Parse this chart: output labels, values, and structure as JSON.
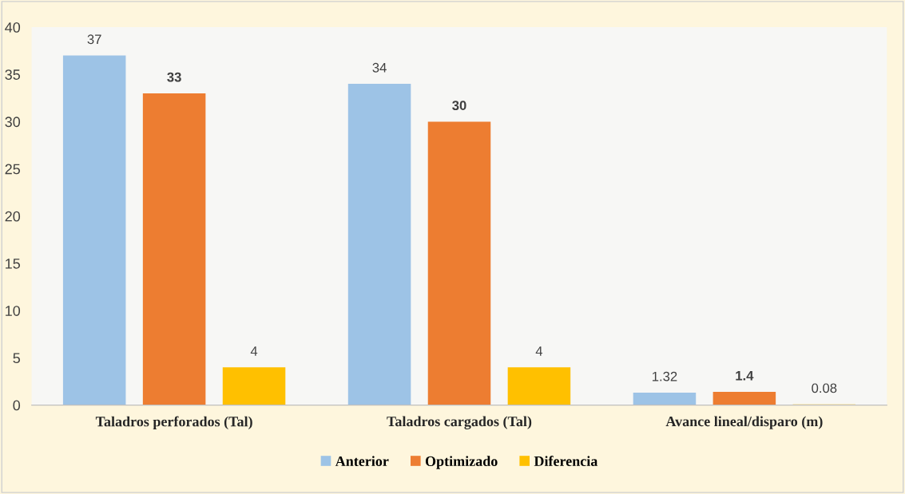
{
  "chart_data": {
    "type": "bar",
    "categories": [
      "Taladros perforados (Tal)",
      "Taladros cargados (Tal)",
      "Avance lineal/disparo (m)"
    ],
    "series": [
      {
        "name": "Anterior",
        "color": "#9dc3e6",
        "values": [
          37,
          34,
          1.32
        ]
      },
      {
        "name": "Optimizado",
        "color": "#ed7d31",
        "values": [
          33,
          30,
          1.4
        ]
      },
      {
        "name": "Diferencia",
        "color": "#ffc000",
        "values": [
          4,
          4,
          0.08
        ]
      }
    ],
    "ylim": [
      0,
      40
    ],
    "yticks": [
      0,
      5,
      10,
      15,
      20,
      25,
      30,
      35,
      40
    ],
    "data_labels": true,
    "grid": false,
    "legend": "bottom"
  }
}
